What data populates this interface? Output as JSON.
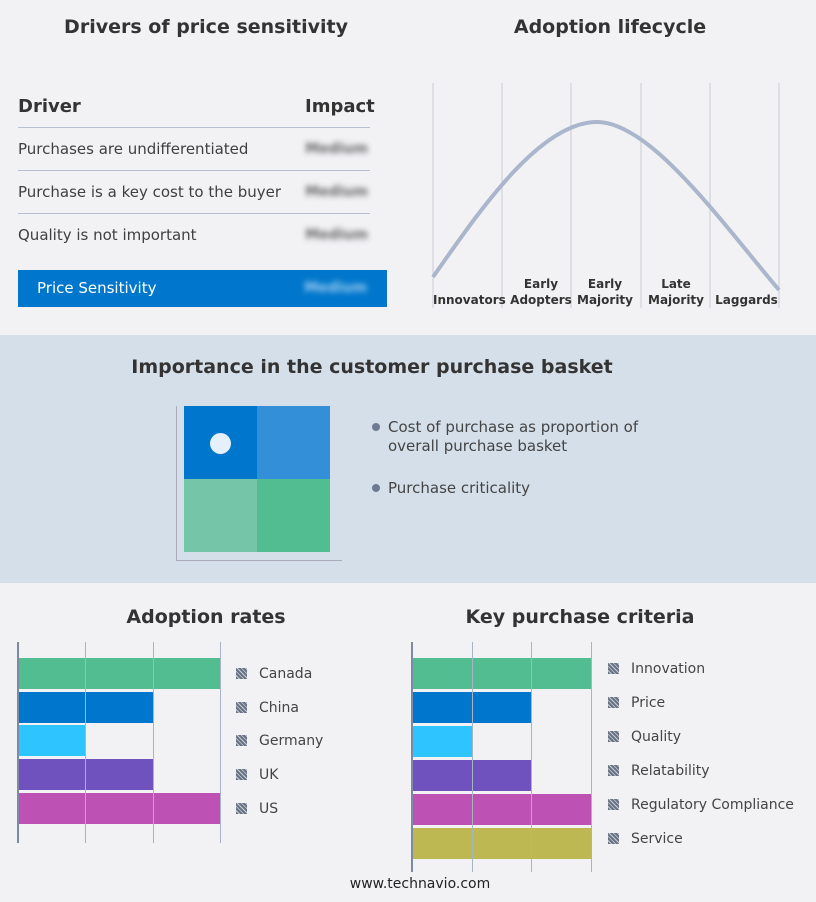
{
  "drivers": {
    "title": "Drivers of price sensitivity",
    "col_driver": "Driver",
    "col_impact": "Impact",
    "rows": [
      {
        "driver": "Purchases are undifferentiated",
        "impact": "Medium"
      },
      {
        "driver": "Purchase is a key cost to the buyer",
        "impact": "Medium"
      },
      {
        "driver": "Quality is not important",
        "impact": "Medium"
      }
    ],
    "summary": {
      "label": "Price Sensitivity",
      "impact": "Medium"
    }
  },
  "lifecycle": {
    "title": "Adoption lifecycle",
    "stages": [
      "Innovators",
      "Early Adopters",
      "Early Majority",
      "Late Majority",
      "Laggards"
    ]
  },
  "basket": {
    "title": "Importance in the customer purchase basket",
    "legend": [
      "Cost of purchase as proportion of overall purchase basket",
      "Purchase criticality"
    ]
  },
  "chart_data": [
    {
      "type": "bar",
      "title": "Adoption rates",
      "orientation": "horizontal",
      "categories": [
        "Canada",
        "China",
        "Germany",
        "UK",
        "US"
      ],
      "values": [
        3,
        2,
        1,
        2,
        3
      ],
      "xlim": [
        0,
        3
      ],
      "colors": [
        "#52bd91",
        "#0077cc",
        "#2ec4ff",
        "#6f52bd",
        "#bd52b4"
      ],
      "grid": true,
      "legend": "right"
    },
    {
      "type": "bar",
      "title": "Key purchase criteria",
      "orientation": "horizontal",
      "categories": [
        "Innovation",
        "Price",
        "Quality",
        "Relatability",
        "Regulatory Compliance",
        "Service"
      ],
      "values": [
        3,
        2,
        1,
        2,
        3,
        3
      ],
      "xlim": [
        0,
        3
      ],
      "colors": [
        "#52bd91",
        "#0077cc",
        "#2ec4ff",
        "#6f52bd",
        "#bd52b4",
        "#bdb852"
      ],
      "grid": true,
      "legend": "right"
    }
  ],
  "footer": "www.technavio.com"
}
